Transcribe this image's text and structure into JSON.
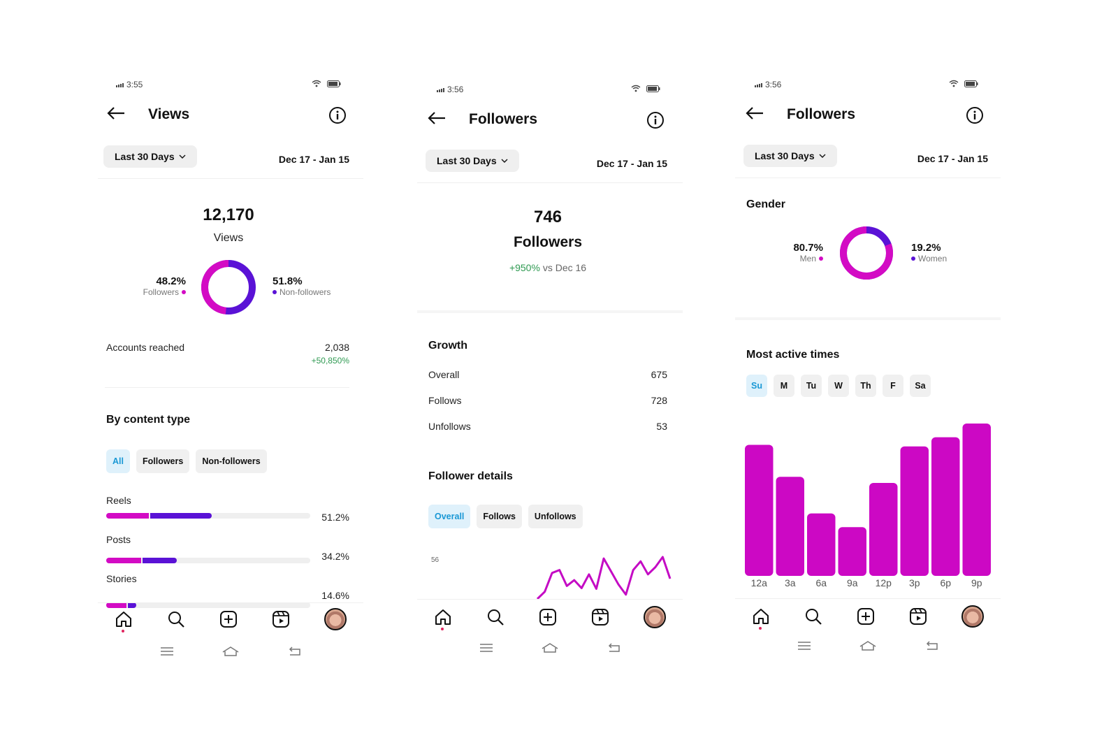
{
  "colors": {
    "followers": "#d30bc4",
    "nonfollowers": "#5a12d6",
    "accent_blue": "#1a98d5",
    "positive": "#2f9a52"
  },
  "screens": [
    {
      "status_time": "3:55",
      "title": "Views",
      "range_label": "Last 30 Days",
      "date_range": "Dec 17 - Jan 15",
      "total_value": "12,170",
      "total_label": "Views",
      "left_pct": "48.2%",
      "left_label": "Followers",
      "right_pct": "51.8%",
      "right_label": "Non-followers",
      "donut_followers_fraction": 0.482,
      "accounts_label": "Accounts reached",
      "accounts_value": "2,038",
      "accounts_change": "+50,850%",
      "content_title": "By content type",
      "filters": [
        "All",
        "Followers",
        "Non-followers"
      ],
      "content_rows": [
        {
          "label": "Reels",
          "value": "51.2%",
          "followers_fraction": 0.21,
          "nonfollowers_fraction": 0.3
        },
        {
          "label": "Posts",
          "value": "34.2%",
          "followers_fraction": 0.17,
          "nonfollowers_fraction": 0.17
        },
        {
          "label": "Stories",
          "value": "14.6%",
          "followers_fraction": 0.1,
          "nonfollowers_fraction": 0.04
        }
      ]
    },
    {
      "status_time": "3:56",
      "title": "Followers",
      "range_label": "Last 30 Days",
      "date_range": "Dec 17 - Jan 15",
      "total_value": "746",
      "total_label": "Followers",
      "change_pct": "+950%",
      "change_suffix": "vs Dec 16",
      "growth_title": "Growth",
      "growth_rows": [
        {
          "label": "Overall",
          "value": "675"
        },
        {
          "label": "Follows",
          "value": "728"
        },
        {
          "label": "Unfollows",
          "value": "53"
        }
      ],
      "details_title": "Follower details",
      "detail_filters": [
        "Overall",
        "Follows",
        "Unfollows"
      ],
      "chart_data": {
        "type": "line",
        "y_tick": "56",
        "values": [
          0,
          10,
          36,
          40,
          18,
          26,
          15,
          34,
          14,
          56,
          38,
          20,
          6,
          40,
          52,
          34,
          44,
          58,
          28
        ]
      }
    },
    {
      "status_time": "3:56",
      "title": "Followers",
      "range_label": "Last 30 Days",
      "date_range": "Dec 17 - Jan 15",
      "gender_title": "Gender",
      "men_pct": "80.7%",
      "men_label": "Men",
      "women_pct": "19.2%",
      "women_label": "Women",
      "donut_men_fraction": 0.807,
      "active_title": "Most active times",
      "days": [
        "Su",
        "M",
        "Tu",
        "W",
        "Th",
        "F",
        "Sa"
      ],
      "chart_data": {
        "type": "bar",
        "categories": [
          "12a",
          "3a",
          "6a",
          "9a",
          "12p",
          "3p",
          "6p",
          "9p"
        ],
        "values": [
          0.86,
          0.65,
          0.41,
          0.32,
          0.61,
          0.85,
          0.91,
          1.0
        ]
      }
    }
  ]
}
